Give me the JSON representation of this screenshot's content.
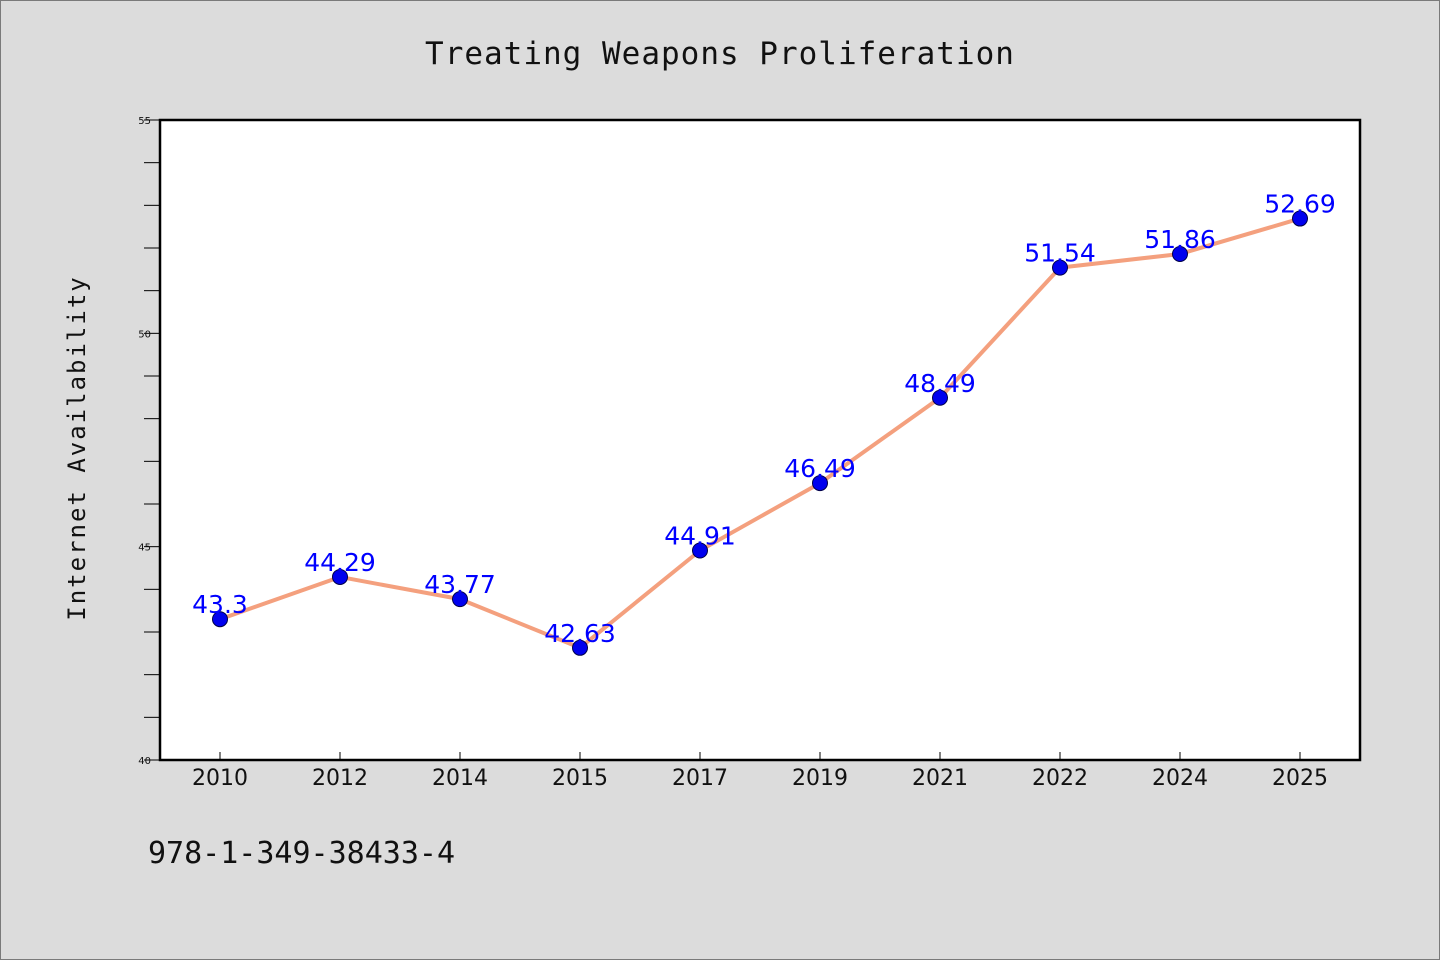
{
  "chart_data": {
    "type": "line",
    "title": "Treating Weapons Proliferation",
    "xlabel": "",
    "ylabel": "Internet Availability",
    "categories": [
      "2010",
      "2012",
      "2014",
      "2015",
      "2017",
      "2019",
      "2021",
      "2022",
      "2024",
      "2025"
    ],
    "series": [
      {
        "values": [
          43.3,
          44.29,
          43.77,
          42.63,
          44.91,
          46.49,
          48.49,
          51.54,
          51.86,
          52.69
        ],
        "labels": [
          "43.3",
          "44.29",
          "43.77",
          "42.63",
          "44.91",
          "46.49",
          "48.49",
          "51.54",
          "51.86",
          "52.69"
        ],
        "line_color": "#f4a07e",
        "marker_color": "#0000ee",
        "label_color": "#0000ff"
      }
    ],
    "ylim": [
      40,
      55
    ],
    "yticks": [
      "40",
      "45",
      "50",
      "55"
    ],
    "yticks_minor_step": 1,
    "grid": false,
    "legend": "none"
  },
  "footer": {
    "isbn": "978-1-349-38433-4"
  },
  "colors": {
    "background": "#dcdcdc",
    "plot_background": "#ffffff",
    "axis": "#000000"
  }
}
